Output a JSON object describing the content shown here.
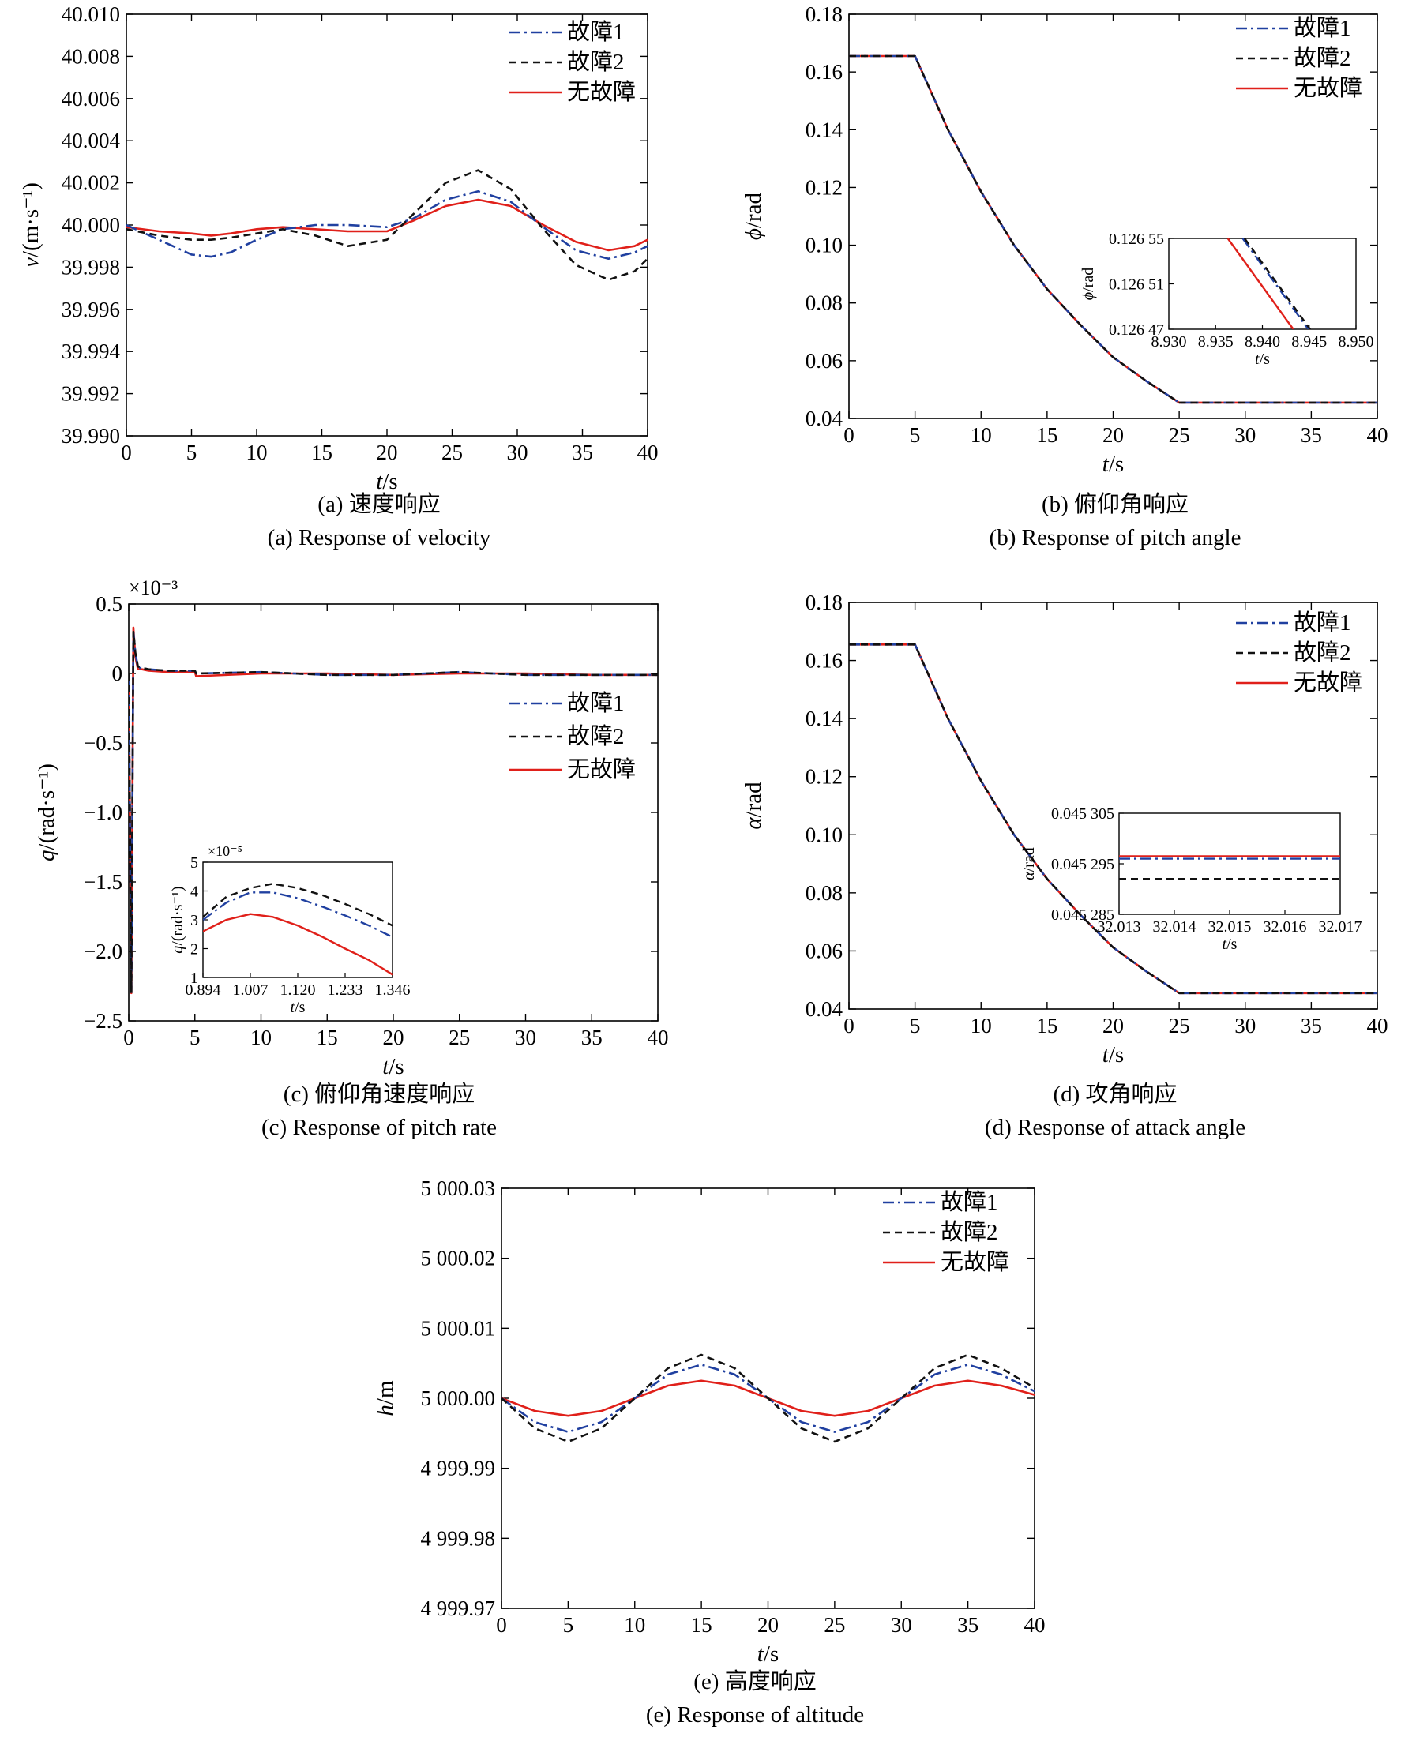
{
  "figure": {
    "legend_labels": [
      "故障1",
      "故障2",
      "无故障"
    ],
    "series_colors": {
      "fault1": "#2040a0",
      "fault2": "#111111",
      "nofault": "#e0201a"
    }
  },
  "chart_data": [
    {
      "id": "a",
      "type": "line",
      "caption_cn": "(a) 速度响应",
      "caption_en": "(a) Response of velocity",
      "xlabel": "t/s",
      "ylabel": "v/(m·s⁻¹)",
      "xlim": [
        0,
        40
      ],
      "ylim": [
        39.99,
        40.01
      ],
      "xticks": [
        0,
        5,
        10,
        15,
        20,
        25,
        30,
        35,
        40
      ],
      "yticks": [
        39.99,
        39.992,
        39.994,
        39.996,
        39.998,
        40.0,
        40.002,
        40.004,
        40.006,
        40.008,
        40.01
      ],
      "ytick_labels": [
        "39.990",
        "39.992",
        "39.994",
        "39.996",
        "39.998",
        "40.000",
        "40.002",
        "40.004",
        "40.006",
        "40.008",
        "40.010"
      ],
      "legend": "top-right",
      "x": [
        0,
        2.5,
        5,
        6.5,
        8,
        10,
        12,
        14.5,
        17,
        20,
        22,
        24.5,
        27,
        29.5,
        32,
        34.5,
        37,
        39,
        40
      ],
      "series": [
        {
          "name": "故障1",
          "values": [
            40.0,
            39.9993,
            39.9986,
            39.9985,
            39.9987,
            39.9993,
            39.9998,
            40.0,
            40.0,
            39.9999,
            40.0003,
            40.0012,
            40.0016,
            40.0011,
            39.9999,
            39.9988,
            39.9984,
            39.9987,
            39.999
          ]
        },
        {
          "name": "故障2",
          "values": [
            39.9998,
            39.9995,
            39.9993,
            39.9993,
            39.9994,
            39.9996,
            39.9998,
            39.9995,
            39.999,
            39.9993,
            40.0005,
            40.002,
            40.0026,
            40.0017,
            39.9998,
            39.9981,
            39.9974,
            39.9978,
            39.9984
          ]
        },
        {
          "name": "无故障",
          "values": [
            39.9999,
            39.9997,
            39.9996,
            39.9995,
            39.9996,
            39.9998,
            39.9999,
            39.9998,
            39.9997,
            39.9997,
            40.0002,
            40.0009,
            40.0012,
            40.0009,
            40.0,
            39.9992,
            39.9988,
            39.999,
            39.9993
          ]
        }
      ]
    },
    {
      "id": "b",
      "type": "line",
      "caption_cn": "(b) 俯仰角响应",
      "caption_en": "(b) Response of pitch angle",
      "xlabel": "t/s",
      "ylabel": "ϕ/rad",
      "xlim": [
        0,
        40
      ],
      "ylim": [
        0.04,
        0.18
      ],
      "xticks": [
        0,
        5,
        10,
        15,
        20,
        25,
        30,
        35,
        40
      ],
      "yticks": [
        0.04,
        0.06,
        0.08,
        0.1,
        0.12,
        0.14,
        0.16,
        0.18
      ],
      "ytick_labels": [
        "0.04",
        "0.06",
        "0.08",
        "0.10",
        "0.12",
        "0.14",
        "0.16",
        "0.18"
      ],
      "legend": "top-right",
      "x": [
        0,
        5,
        7.5,
        10,
        12.5,
        15,
        17.5,
        20,
        22.5,
        25,
        30,
        35,
        40
      ],
      "series": [
        {
          "name": "故障1",
          "values": [
            0.1655,
            0.1655,
            0.14,
            0.1185,
            0.1,
            0.0848,
            0.0725,
            0.0612,
            0.053,
            0.0455,
            0.0455,
            0.0455,
            0.0455
          ]
        },
        {
          "name": "故障2",
          "values": [
            0.1655,
            0.1655,
            0.14,
            0.1185,
            0.1,
            0.0848,
            0.0725,
            0.0612,
            0.053,
            0.0455,
            0.0455,
            0.0455,
            0.0455
          ]
        },
        {
          "name": "无故障",
          "values": [
            0.1655,
            0.1655,
            0.14,
            0.1185,
            0.1,
            0.0848,
            0.0725,
            0.0612,
            0.053,
            0.0455,
            0.0455,
            0.0455,
            0.0455
          ]
        }
      ],
      "inset": {
        "xlabel": "t/s",
        "ylabel": "ϕ/rad",
        "xlim": [
          8.93,
          8.95
        ],
        "ylim": [
          0.12647,
          0.12655
        ],
        "xticks": [
          8.93,
          8.935,
          8.94,
          8.945,
          8.95
        ],
        "xtick_labels": [
          "8.930",
          "8.935",
          "8.940",
          "8.945",
          "8.950"
        ],
        "yticks": [
          0.12647,
          0.12651,
          0.12655
        ],
        "ytick_labels": [
          "0.126 47",
          "0.126 51",
          "0.126 55"
        ],
        "series": [
          {
            "name": "故障1",
            "x": [
              8.9379,
              8.9449
            ],
            "values": [
              0.12655,
              0.12647
            ]
          },
          {
            "name": "故障2",
            "x": [
              8.9381,
              8.9451
            ],
            "values": [
              0.12655,
              0.12647
            ]
          },
          {
            "name": "无故障",
            "x": [
              8.9363,
              8.9433
            ],
            "values": [
              0.12655,
              0.12647
            ]
          }
        ]
      }
    },
    {
      "id": "c",
      "type": "line",
      "caption_cn": "(c) 俯仰角速度响应",
      "caption_en": "(c) Response of pitch rate",
      "xlabel": "t/s",
      "ylabel": "q/(rad·s⁻¹)",
      "y_multiplier": "×10⁻³",
      "xlim": [
        0,
        40
      ],
      "ylim": [
        -2.5,
        0.5
      ],
      "xticks": [
        0,
        5,
        10,
        15,
        20,
        25,
        30,
        35,
        40
      ],
      "yticks": [
        -2.5,
        -2.0,
        -1.5,
        -1.0,
        -0.5,
        0,
        0.5
      ],
      "ytick_labels": [
        "−2.5",
        "−2.0",
        "−1.5",
        "−1.0",
        "−0.5",
        "0",
        "0.5"
      ],
      "legend": "center-right",
      "x": [
        0,
        0.1,
        0.2,
        0.35,
        0.5,
        0.7,
        1.0,
        1.5,
        3,
        5,
        5.1,
        10,
        15,
        20,
        25,
        30,
        35,
        40
      ],
      "series": [
        {
          "name": "故障1",
          "values": [
            0,
            -1.2,
            -2.3,
            0.3,
            0.15,
            0.04,
            0.04,
            0.03,
            0.02,
            0.02,
            0.0,
            0.01,
            -0.01,
            -0.01,
            0.01,
            -0.01,
            -0.01,
            -0.01
          ]
        },
        {
          "name": "故障2",
          "values": [
            0,
            -1.2,
            -2.3,
            0.3,
            0.15,
            0.05,
            0.04,
            0.03,
            0.02,
            0.02,
            0.0,
            0.01,
            -0.01,
            -0.01,
            0.01,
            -0.01,
            -0.01,
            -0.01
          ]
        },
        {
          "name": "无故障",
          "values": [
            0,
            -1.2,
            -2.3,
            0.33,
            0.12,
            0.03,
            0.03,
            0.02,
            0.01,
            0.01,
            -0.02,
            0.0,
            0.0,
            -0.01,
            0.0,
            0.0,
            -0.01,
            -0.01
          ]
        }
      ],
      "inset": {
        "xlabel": "t/s",
        "ylabel": "q/(rad·s⁻¹)",
        "y_multiplier": "×10⁻⁵",
        "xlim": [
          0.894,
          1.346
        ],
        "ylim": [
          1,
          5
        ],
        "xticks": [
          0.894,
          1.007,
          1.12,
          1.233,
          1.346
        ],
        "xtick_labels": [
          "0.894",
          "1.007",
          "1.120",
          "1.233",
          "1.346"
        ],
        "yticks": [
          1,
          2,
          3,
          4,
          5
        ],
        "ytick_labels": [
          "1",
          "2",
          "3",
          "4",
          "5"
        ],
        "series": [
          {
            "name": "故障1",
            "x": [
              0.894,
              0.95,
              1.007,
              1.06,
              1.12,
              1.18,
              1.233,
              1.29,
              1.346
            ],
            "values": [
              3.0,
              3.6,
              3.95,
              3.95,
              3.75,
              3.45,
              3.15,
              2.8,
              2.4
            ]
          },
          {
            "name": "故障2",
            "x": [
              0.894,
              0.95,
              1.007,
              1.06,
              1.12,
              1.18,
              1.233,
              1.29,
              1.346
            ],
            "values": [
              3.1,
              3.8,
              4.1,
              4.25,
              4.1,
              3.85,
              3.55,
              3.2,
              2.8
            ]
          },
          {
            "name": "无故障",
            "x": [
              0.894,
              0.95,
              1.007,
              1.06,
              1.12,
              1.18,
              1.233,
              1.29,
              1.346
            ],
            "values": [
              2.6,
              3.0,
              3.2,
              3.1,
              2.8,
              2.4,
              2.0,
              1.6,
              1.1
            ]
          }
        ]
      }
    },
    {
      "id": "d",
      "type": "line",
      "caption_cn": "(d) 攻角响应",
      "caption_en": "(d) Response of attack angle",
      "xlabel": "t/s",
      "ylabel": "α/rad",
      "xlim": [
        0,
        40
      ],
      "ylim": [
        0.04,
        0.18
      ],
      "xticks": [
        0,
        5,
        10,
        15,
        20,
        25,
        30,
        35,
        40
      ],
      "yticks": [
        0.04,
        0.06,
        0.08,
        0.1,
        0.12,
        0.14,
        0.16,
        0.18
      ],
      "ytick_labels": [
        "0.04",
        "0.06",
        "0.08",
        "0.10",
        "0.12",
        "0.14",
        "0.16",
        "0.18"
      ],
      "legend": "top-right",
      "x": [
        0,
        5,
        7.5,
        10,
        12.5,
        15,
        17.5,
        20,
        22.5,
        25,
        30,
        35,
        40
      ],
      "series": [
        {
          "name": "故障1",
          "values": [
            0.1655,
            0.1655,
            0.14,
            0.1185,
            0.1,
            0.0848,
            0.0725,
            0.0612,
            0.053,
            0.0455,
            0.0455,
            0.0455,
            0.0455
          ]
        },
        {
          "name": "故障2",
          "values": [
            0.1655,
            0.1655,
            0.14,
            0.1185,
            0.1,
            0.0848,
            0.0725,
            0.0612,
            0.053,
            0.0455,
            0.0455,
            0.0455,
            0.0455
          ]
        },
        {
          "name": "无故障",
          "values": [
            0.1655,
            0.1655,
            0.14,
            0.1185,
            0.1,
            0.0848,
            0.0725,
            0.0612,
            0.053,
            0.0455,
            0.0455,
            0.0455,
            0.0455
          ]
        }
      ],
      "inset": {
        "xlabel": "t/s",
        "ylabel": "α/rad",
        "xlim": [
          32.013,
          32.017
        ],
        "ylim": [
          0.045285,
          0.045305
        ],
        "xticks": [
          32.013,
          32.014,
          32.015,
          32.016,
          32.017
        ],
        "xtick_labels": [
          "32.013",
          "32.014",
          "32.015",
          "32.016",
          "32.017"
        ],
        "yticks": [
          0.045285,
          0.045295,
          0.045305
        ],
        "ytick_labels": [
          "0.045 285",
          "0.045 295",
          "0.045 305"
        ],
        "series": [
          {
            "name": "故障1",
            "x": [
              32.013,
              32.017
            ],
            "values": [
              0.045296,
              0.045296
            ]
          },
          {
            "name": "故障2",
            "x": [
              32.013,
              32.017
            ],
            "values": [
              0.045292,
              0.045292
            ]
          },
          {
            "name": "无故障",
            "x": [
              32.013,
              32.017
            ],
            "values": [
              0.0452965,
              0.0452965
            ]
          }
        ]
      }
    },
    {
      "id": "e",
      "type": "line",
      "caption_cn": "(e) 高度响应",
      "caption_en": "(e) Response of altitude",
      "xlabel": "t/s",
      "ylabel": "h/m",
      "xlim": [
        0,
        40
      ],
      "ylim": [
        4999.97,
        5000.03
      ],
      "xticks": [
        0,
        5,
        10,
        15,
        20,
        25,
        30,
        35,
        40
      ],
      "yticks": [
        4999.97,
        4999.98,
        4999.99,
        5000.0,
        5000.01,
        5000.02,
        5000.03
      ],
      "ytick_labels": [
        "4 999.97",
        "4 999.98",
        "4 999.99",
        "5 000.00",
        "5 000.01",
        "5 000.02",
        "5 000.03"
      ],
      "legend": "top-right",
      "x": [
        0,
        2.5,
        5,
        7.5,
        10,
        12.5,
        15,
        17.5,
        20,
        22.5,
        25,
        27.5,
        30,
        32.5,
        35,
        37.5,
        40
      ],
      "series": [
        {
          "name": "故障1",
          "values": [
            5000.0,
            4999.9966,
            4999.9952,
            4999.9966,
            5000.0,
            5000.0034,
            5000.0048,
            5000.0034,
            5000.0,
            4999.9966,
            4999.9952,
            4999.9966,
            5000.0,
            5000.0034,
            5000.0048,
            5000.0034,
            5000.001
          ]
        },
        {
          "name": "故障2",
          "values": [
            5000.0,
            4999.9957,
            4999.9938,
            4999.9957,
            5000.0,
            5000.0043,
            5000.0062,
            5000.0043,
            5000.0,
            4999.9957,
            4999.9938,
            4999.9957,
            5000.0,
            5000.0043,
            5000.0062,
            5000.0043,
            5000.0015
          ]
        },
        {
          "name": "无故障",
          "values": [
            5000.0,
            4999.9982,
            4999.9975,
            4999.9982,
            5000.0,
            5000.0018,
            5000.0025,
            5000.0018,
            5000.0,
            4999.9982,
            4999.9975,
            4999.9982,
            5000.0,
            5000.0018,
            5000.0025,
            5000.0018,
            5000.0005
          ]
        }
      ]
    }
  ]
}
